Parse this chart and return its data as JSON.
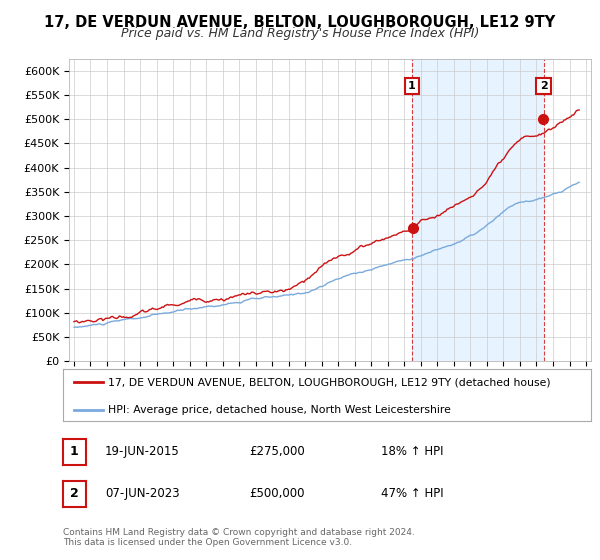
{
  "title": "17, DE VERDUN AVENUE, BELTON, LOUGHBOROUGH, LE12 9TY",
  "subtitle": "Price paid vs. HM Land Registry's House Price Index (HPI)",
  "ylim": [
    0,
    625000
  ],
  "yticks": [
    0,
    50000,
    100000,
    150000,
    200000,
    250000,
    300000,
    350000,
    400000,
    450000,
    500000,
    550000,
    600000
  ],
  "ytick_labels": [
    "£0",
    "£50K",
    "£100K",
    "£150K",
    "£200K",
    "£250K",
    "£300K",
    "£350K",
    "£400K",
    "£450K",
    "£500K",
    "£550K",
    "£600K"
  ],
  "xlim_start": 1994.7,
  "xlim_end": 2026.3,
  "line1_color": "#cc1111",
  "line2_color": "#7aaadd",
  "shade_color": "#ddeeff",
  "marker1_year": 2015.46,
  "marker1_value": 275000,
  "marker2_year": 2023.43,
  "marker2_value": 500000,
  "legend_line1": "17, DE VERDUN AVENUE, BELTON, LOUGHBOROUGH, LE12 9TY (detached house)",
  "legend_line2": "HPI: Average price, detached house, North West Leicestershire",
  "annotation1_label": "1",
  "annotation1_date": "19-JUN-2015",
  "annotation1_price": "£275,000",
  "annotation1_hpi": "18% ↑ HPI",
  "annotation2_label": "2",
  "annotation2_date": "07-JUN-2023",
  "annotation2_price": "£500,000",
  "annotation2_hpi": "47% ↑ HPI",
  "footer1": "Contains HM Land Registry data © Crown copyright and database right 2024.",
  "footer2": "This data is licensed under the Open Government Licence v3.0.",
  "bg_color": "#ffffff",
  "grid_color": "#cccccc",
  "title_fontsize": 10.5,
  "subtitle_fontsize": 9
}
